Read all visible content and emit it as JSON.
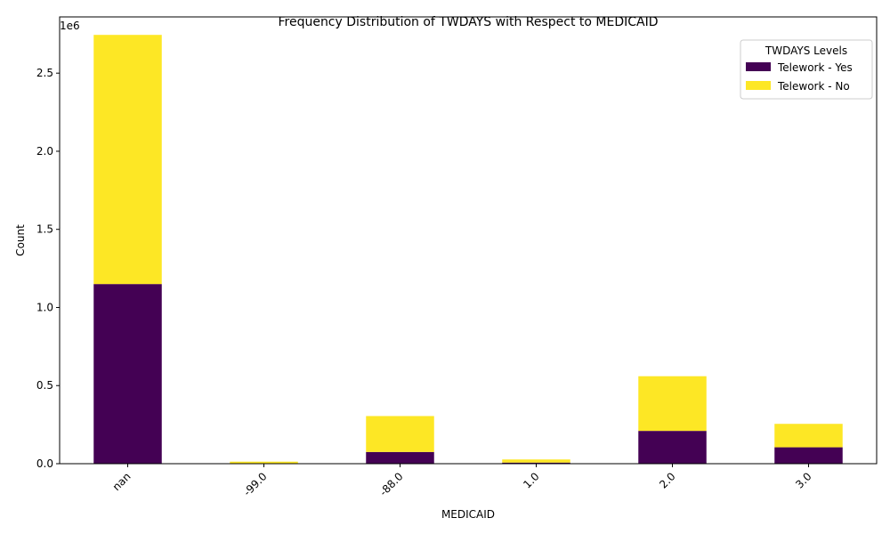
{
  "chart_data": {
    "type": "bar",
    "stacked": true,
    "title": "Frequency Distribution of TWDAYS with Respect to MEDICAID",
    "xlabel": "MEDICAID",
    "ylabel": "Count",
    "y_offset_label": "1e6",
    "categories": [
      "nan",
      "-99.0",
      "-88.0",
      "1.0",
      "2.0",
      "3.0"
    ],
    "series": [
      {
        "name": "Telework - Yes",
        "color": "#440154",
        "values": [
          1150000,
          3000,
          75000,
          7000,
          210000,
          105000
        ]
      },
      {
        "name": "Telework - No",
        "color": "#fde725",
        "values": [
          1595000,
          10000,
          230000,
          20000,
          350000,
          150000
        ]
      }
    ],
    "ylim": [
      0,
      2860000
    ],
    "yticks": [
      0,
      500000,
      1000000,
      1500000,
      2000000,
      2500000
    ],
    "ytick_labels": [
      "0.0",
      "0.5",
      "1.0",
      "1.5",
      "2.0",
      "2.5"
    ],
    "xtick_rotation": 45,
    "legend": {
      "title": "TWDAYS Levels",
      "position": "top-right"
    },
    "grid": false
  }
}
